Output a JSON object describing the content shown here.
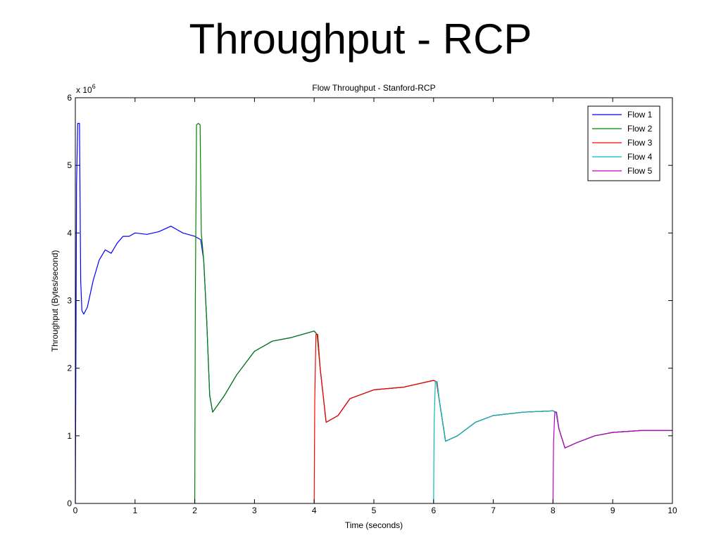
{
  "slide": {
    "title": "Throughput - RCP"
  },
  "chart_data": {
    "type": "line",
    "title": "Flow Throughput - Stanford-RCP",
    "xlabel": "Time (seconds)",
    "ylabel": "Throughput (Bytes/second)",
    "y_multiplier_label": "x 10",
    "y_multiplier_exponent": "6",
    "xlim": [
      0,
      10
    ],
    "ylim": [
      0,
      6
    ],
    "x_ticks": [
      0,
      1,
      2,
      3,
      4,
      5,
      6,
      7,
      8,
      9,
      10
    ],
    "y_ticks": [
      0,
      1,
      2,
      3,
      4,
      5,
      6
    ],
    "legend_position": "top-right",
    "grid": false,
    "series": [
      {
        "name": "Flow 1",
        "color": "#0000ff",
        "x": [
          0,
          0.02,
          0.04,
          0.05,
          0.07,
          0.09,
          0.11,
          0.14,
          0.2,
          0.3,
          0.4,
          0.5,
          0.6,
          0.7,
          0.8,
          0.9,
          1.0,
          1.2,
          1.4,
          1.6,
          1.7,
          1.8,
          2.0,
          2.1,
          2.15,
          2.2,
          2.25,
          2.3,
          2.5,
          2.7,
          3.0,
          3.3,
          3.6,
          4.0,
          4.05,
          4.1,
          4.2,
          4.4,
          4.6,
          5.0,
          5.5,
          6.0,
          6.05,
          6.1,
          6.2,
          6.4,
          6.7,
          7.0,
          7.5,
          8.0,
          8.05,
          8.1,
          8.2,
          8.4,
          8.7,
          9.0,
          9.5,
          10.0
        ],
        "y": [
          0,
          4.7,
          5.62,
          5.62,
          5.62,
          3.3,
          2.85,
          2.8,
          2.9,
          3.3,
          3.6,
          3.75,
          3.7,
          3.85,
          3.95,
          3.95,
          4.0,
          3.98,
          4.02,
          4.1,
          4.05,
          4.0,
          3.95,
          3.9,
          3.6,
          2.7,
          1.6,
          1.35,
          1.6,
          1.9,
          2.25,
          2.4,
          2.45,
          2.55,
          2.5,
          2.0,
          1.2,
          1.3,
          1.55,
          1.68,
          1.72,
          1.82,
          1.8,
          1.5,
          0.92,
          1.0,
          1.2,
          1.3,
          1.35,
          1.37,
          1.35,
          1.1,
          0.82,
          0.9,
          1.0,
          1.05,
          1.08,
          1.08
        ]
      },
      {
        "name": "Flow 2",
        "color": "#008000",
        "x": [
          2.0,
          2.01,
          2.03,
          2.06,
          2.09,
          2.11,
          2.15,
          2.2,
          2.25,
          2.3,
          2.5,
          2.7,
          3.0,
          3.3,
          3.6,
          4.0,
          4.05,
          4.1,
          4.2,
          4.4,
          4.6,
          5.0,
          5.5,
          6.0,
          6.05,
          6.1,
          6.2,
          6.4,
          6.7,
          7.0,
          7.5,
          8.0,
          8.05,
          8.1,
          8.2,
          8.4,
          8.7,
          9.0,
          9.5,
          10.0
        ],
        "y": [
          0,
          3.0,
          5.6,
          5.62,
          5.6,
          4.0,
          3.6,
          2.7,
          1.6,
          1.35,
          1.6,
          1.9,
          2.25,
          2.4,
          2.45,
          2.55,
          2.5,
          2.0,
          1.2,
          1.3,
          1.55,
          1.68,
          1.72,
          1.82,
          1.8,
          1.5,
          0.92,
          1.0,
          1.2,
          1.3,
          1.35,
          1.37,
          1.35,
          1.1,
          0.82,
          0.9,
          1.0,
          1.05,
          1.08,
          1.08
        ]
      },
      {
        "name": "Flow 3",
        "color": "#ff0000",
        "x": [
          4.0,
          4.01,
          4.03,
          4.06,
          4.1,
          4.2,
          4.4,
          4.6,
          5.0,
          5.5,
          6.0,
          6.05,
          6.1,
          6.2,
          6.4,
          6.7,
          7.0,
          7.5,
          8.0,
          8.05,
          8.1,
          8.2,
          8.4,
          8.7,
          9.0,
          9.5,
          10.0
        ],
        "y": [
          0,
          1.5,
          2.5,
          2.5,
          2.0,
          1.2,
          1.3,
          1.55,
          1.68,
          1.72,
          1.82,
          1.8,
          1.5,
          0.92,
          1.0,
          1.2,
          1.3,
          1.35,
          1.37,
          1.35,
          1.1,
          0.82,
          0.9,
          1.0,
          1.05,
          1.08,
          1.08
        ]
      },
      {
        "name": "Flow 4",
        "color": "#00bfbf",
        "x": [
          6.0,
          6.01,
          6.03,
          6.06,
          6.1,
          6.2,
          6.4,
          6.7,
          7.0,
          7.5,
          8.0,
          8.05,
          8.1,
          8.2,
          8.4,
          8.7,
          9.0,
          9.5,
          10.0
        ],
        "y": [
          0,
          1.2,
          1.8,
          1.8,
          1.5,
          0.92,
          1.0,
          1.2,
          1.3,
          1.35,
          1.37,
          1.35,
          1.1,
          0.82,
          0.9,
          1.0,
          1.05,
          1.08,
          1.08
        ]
      },
      {
        "name": "Flow 5",
        "color": "#bf00bf",
        "x": [
          8.0,
          8.01,
          8.03,
          8.06,
          8.1,
          8.2,
          8.4,
          8.7,
          9.0,
          9.5,
          10.0
        ],
        "y": [
          0,
          0.9,
          1.35,
          1.35,
          1.1,
          0.82,
          0.9,
          1.0,
          1.05,
          1.08,
          1.08
        ]
      }
    ]
  }
}
